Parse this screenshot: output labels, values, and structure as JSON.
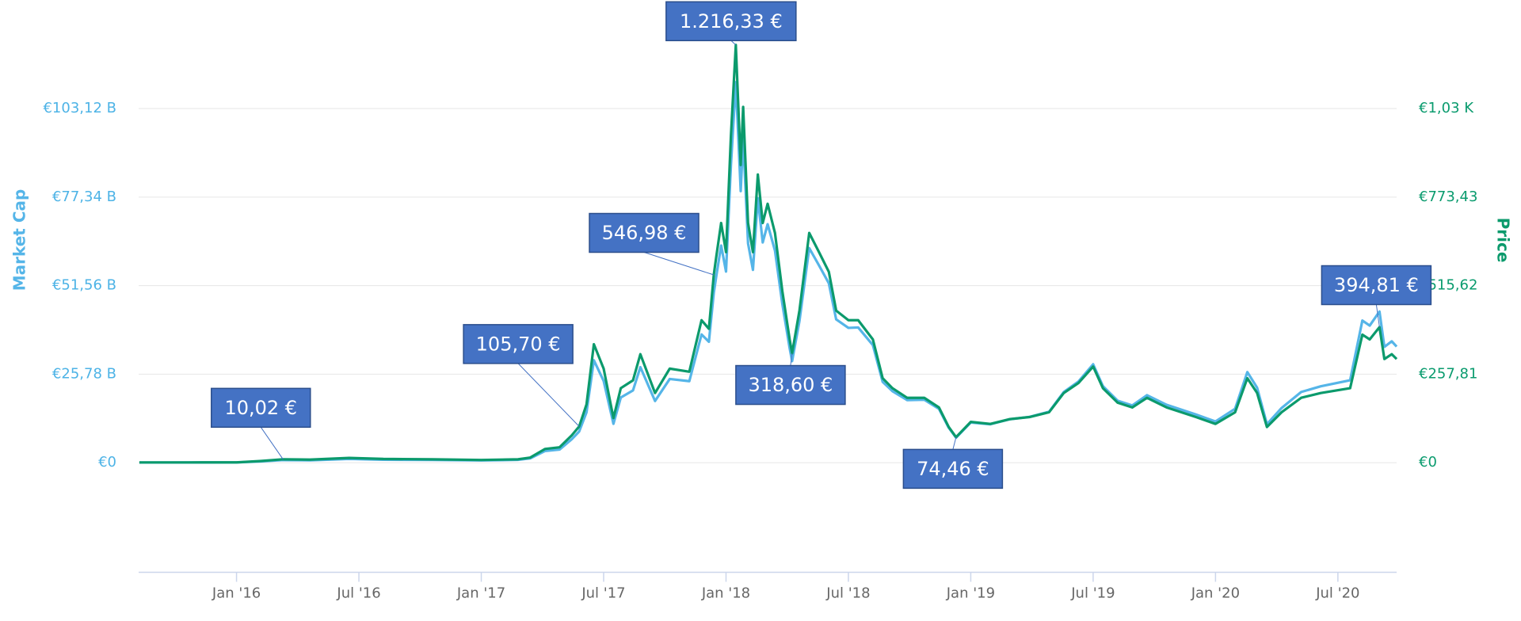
{
  "chart_data": {
    "type": "line",
    "ylabel": "Market Cap",
    "y2label": "Price",
    "x": [
      2015.603,
      2015.8,
      2016.0,
      2016.1,
      2016.19,
      2016.3,
      2016.46,
      2016.6,
      2016.8,
      2017.0,
      2017.15,
      2017.2,
      2017.26,
      2017.32,
      2017.37,
      2017.4,
      2017.43,
      2017.46,
      2017.5,
      2017.54,
      2017.57,
      2017.62,
      2017.65,
      2017.71,
      2017.77,
      2017.85,
      2017.9,
      2017.93,
      2017.95,
      2017.96,
      2017.98,
      2018.0,
      2018.02,
      2018.04,
      2018.06,
      2018.07,
      2018.09,
      2018.11,
      2018.13,
      2018.15,
      2018.17,
      2018.2,
      2018.23,
      2018.26,
      2018.27,
      2018.3,
      2018.34,
      2018.38,
      2018.42,
      2018.45,
      2018.5,
      2018.54,
      2018.6,
      2018.64,
      2018.68,
      2018.74,
      2018.81,
      2018.87,
      2018.91,
      2018.94,
      2019.0,
      2019.08,
      2019.16,
      2019.24,
      2019.32,
      2019.38,
      2019.44,
      2019.5,
      2019.54,
      2019.6,
      2019.66,
      2019.72,
      2019.8,
      2019.92,
      2020.0,
      2020.08,
      2020.13,
      2020.17,
      2020.21,
      2020.27,
      2020.35,
      2020.43,
      2020.55,
      2020.6,
      2020.63,
      2020.67,
      2020.69,
      2020.72,
      2020.74
    ],
    "series": [
      {
        "color": "#55b5e8",
        "values": [
          0.06,
          0.07,
          0.08,
          0.38,
          0.77,
          0.7,
          1.1,
          0.88,
          0.81,
          0.66,
          0.84,
          1.27,
          3.4,
          3.84,
          6.86,
          9.1,
          14.67,
          29.84,
          23.81,
          11.34,
          18.97,
          21.07,
          27.84,
          17.97,
          24.39,
          23.74,
          37.35,
          35.22,
          49.45,
          54.21,
          63.24,
          55.66,
          86.54,
          110.81,
          79.07,
          94.59,
          63.87,
          56.15,
          77.02,
          64.15,
          69.44,
          61.75,
          46.25,
          33.32,
          29.57,
          41.24,
          62.48,
          57.44,
          52.26,
          41.73,
          39.26,
          39.38,
          34.25,
          23.54,
          20.83,
          18.24,
          18.33,
          15.7,
          10.17,
          7.3,
          11.72,
          11.2,
          12.66,
          13.35,
          14.85,
          20.58,
          23.64,
          28.67,
          22.29,
          18.06,
          16.68,
          19.67,
          16.86,
          14.04,
          12.01,
          15.71,
          26.4,
          21.84,
          11.22,
          15.93,
          20.6,
          22.25,
          24.0,
          41.4,
          39.92,
          44.02,
          33.73,
          35.36,
          33.82
        ]
      },
      {
        "color": "#0b9a6c",
        "axis": "y2",
        "values": [
          0.8,
          0.9,
          1.0,
          5,
          10.02,
          9,
          14,
          11,
          10,
          8,
          10,
          15,
          40,
          45,
          80,
          105.7,
          170,
          345,
          274,
          130,
          217,
          240,
          316,
          203,
          274,
          265,
          415,
          390,
          546.98,
          599,
          698,
          613,
          952,
          1216.33,
          867,
          1036,
          698,
          613,
          839,
          698,
          754,
          669,
          500,
          359,
          318.6,
          443,
          669,
          613,
          556,
          443,
          415,
          415,
          359,
          246,
          217,
          189,
          189,
          161,
          104,
          74.46,
          119,
          113,
          127,
          133,
          147,
          203,
          232,
          280,
          217,
          175,
          161,
          189,
          161,
          133,
          113,
          147,
          246,
          203,
          104,
          147,
          189,
          203,
          217,
          373,
          359,
          394.81,
          302,
          316,
          302
        ]
      }
    ],
    "annotations": [
      {
        "x": 2016.19,
        "value": 10.02,
        "label": "10,02 €"
      },
      {
        "x": 2017.4,
        "value": 105.7,
        "label": "105,70 €"
      },
      {
        "x": 2017.95,
        "value": 546.98,
        "label": "546,98 €"
      },
      {
        "x": 2018.04,
        "value": 1216.33,
        "label": "1.216,33 €"
      },
      {
        "x": 2018.27,
        "value": 318.6,
        "label": "318,60 €"
      },
      {
        "x": 2018.94,
        "value": 74.46,
        "label": "74,46 €"
      },
      {
        "x": 2020.67,
        "value": 394.81,
        "label": "394,81 €"
      }
    ],
    "annotation_color": "#4472c4",
    "xlim": [
      2015.6,
      2020.74
    ],
    "xticks": [
      {
        "value": 2016,
        "label": "Jan '16"
      },
      {
        "value": 2016.5,
        "label": "Jul '16"
      },
      {
        "value": 2017,
        "label": "Jan '17"
      },
      {
        "value": 2017.5,
        "label": "Jul '17"
      },
      {
        "value": 2018,
        "label": "Jan '18"
      },
      {
        "value": 2018.5,
        "label": "Jul '18"
      },
      {
        "value": 2019,
        "label": "Jan '19"
      },
      {
        "value": 2019.5,
        "label": "Jul '19"
      },
      {
        "value": 2020,
        "label": "Jan '20"
      },
      {
        "value": 2020.5,
        "label": "Jul '20"
      }
    ],
    "ylim": [
      -31.9,
      130
    ],
    "yticks": [
      {
        "value": 0,
        "label": "€0"
      },
      {
        "value": 25.78,
        "label": "€25,78 B"
      },
      {
        "value": 51.56,
        "label": "€51,56 B"
      },
      {
        "value": 77.34,
        "label": "€77,34 B"
      },
      {
        "value": 103.12,
        "label": "€103,12 B"
      }
    ],
    "y2lim": [
      -319,
      1300
    ],
    "y2ticks": [
      {
        "value": 0,
        "label": "€0"
      },
      {
        "value": 257.81,
        "label": "€257,81"
      },
      {
        "value": 515.62,
        "label": "€515,62"
      },
      {
        "value": 773.43,
        "label": "€773,43"
      },
      {
        "value": 1031.24,
        "label": "€1,03 K"
      }
    ],
    "grid": true
  }
}
